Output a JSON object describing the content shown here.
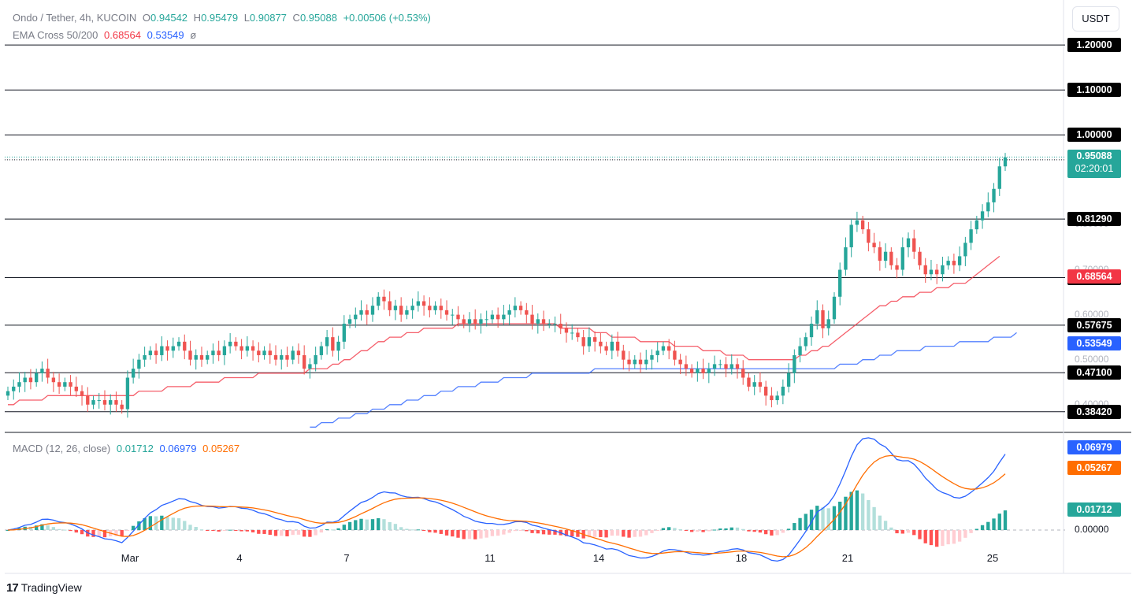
{
  "header": {
    "symbol": "Ondo / Tether, 4h, KUCOIN",
    "open_label": "O",
    "open": "0.94542",
    "high_label": "H",
    "high": "0.95479",
    "low_label": "L",
    "low": "0.90877",
    "close_label": "C",
    "close": "0.95088",
    "change": "+0.00506 (+0.53%)",
    "ema_label": "EMA Cross 50/200",
    "ema50": "0.68564",
    "ema200": "0.53549",
    "ema_extra": "ø"
  },
  "currency_button": "USDT",
  "branding": "TradingView",
  "colors": {
    "up": "#26a69a",
    "down": "#ef5350",
    "ema50": "#f23645",
    "ema200": "#2962ff",
    "macd_line": "#2962ff",
    "signal_line": "#ff6d00"
  },
  "chart_data": [
    {
      "type": "candlestick",
      "x_axis": {
        "ticks": [
          "Mar",
          "4",
          "7",
          "11",
          "14",
          "18",
          "21",
          "25"
        ]
      },
      "y_range": [
        0.34,
        1.23
      ],
      "horizontal_levels": [
        "1.20000",
        "1.10000",
        "1.00000",
        "0.94470",
        "0.81290",
        "0.68250",
        "0.57675",
        "0.47100",
        "0.38420"
      ],
      "price_labels": {
        "current": "0.95088",
        "countdown": "02:20:01",
        "ema50": "0.68564",
        "ema200": "0.53549"
      },
      "axis_ticks": [
        "0.80000",
        "0.70000",
        "0.60000",
        "0.50000",
        "0.40000"
      ],
      "closes": [
        0.43,
        0.44,
        0.45,
        0.46,
        0.45,
        0.47,
        0.48,
        0.46,
        0.45,
        0.44,
        0.45,
        0.44,
        0.43,
        0.42,
        0.4,
        0.41,
        0.41,
        0.4,
        0.41,
        0.4,
        0.39,
        0.46,
        0.48,
        0.5,
        0.51,
        0.52,
        0.51,
        0.53,
        0.52,
        0.53,
        0.54,
        0.52,
        0.5,
        0.51,
        0.5,
        0.51,
        0.52,
        0.51,
        0.53,
        0.54,
        0.53,
        0.52,
        0.53,
        0.52,
        0.51,
        0.52,
        0.51,
        0.5,
        0.51,
        0.5,
        0.52,
        0.51,
        0.48,
        0.49,
        0.51,
        0.53,
        0.55,
        0.52,
        0.54,
        0.58,
        0.59,
        0.6,
        0.61,
        0.6,
        0.62,
        0.64,
        0.63,
        0.61,
        0.62,
        0.6,
        0.61,
        0.62,
        0.63,
        0.62,
        0.61,
        0.62,
        0.61,
        0.6,
        0.6,
        0.59,
        0.58,
        0.59,
        0.58,
        0.59,
        0.59,
        0.6,
        0.59,
        0.6,
        0.61,
        0.62,
        0.61,
        0.6,
        0.58,
        0.59,
        0.58,
        0.58,
        0.58,
        0.57,
        0.56,
        0.56,
        0.55,
        0.53,
        0.55,
        0.54,
        0.53,
        0.52,
        0.54,
        0.52,
        0.5,
        0.49,
        0.5,
        0.49,
        0.5,
        0.51,
        0.52,
        0.53,
        0.52,
        0.5,
        0.49,
        0.48,
        0.47,
        0.48,
        0.47,
        0.48,
        0.49,
        0.49,
        0.48,
        0.49,
        0.48,
        0.46,
        0.44,
        0.45,
        0.44,
        0.42,
        0.41,
        0.42,
        0.44,
        0.47,
        0.51,
        0.53,
        0.55,
        0.58,
        0.61,
        0.57,
        0.59,
        0.64,
        0.7,
        0.75,
        0.8,
        0.81,
        0.79,
        0.76,
        0.75,
        0.72,
        0.74,
        0.71,
        0.7,
        0.75,
        0.77,
        0.74,
        0.71,
        0.69,
        0.7,
        0.69,
        0.71,
        0.72,
        0.71,
        0.73,
        0.76,
        0.79,
        0.81,
        0.83,
        0.85,
        0.88,
        0.93,
        0.95
      ],
      "ema50": [
        0.4,
        0.4,
        0.41,
        0.41,
        0.41,
        0.41,
        0.41,
        0.42,
        0.42,
        0.42,
        0.42,
        0.42,
        0.42,
        0.42,
        0.42,
        0.42,
        0.42,
        0.42,
        0.42,
        0.42,
        0.42,
        0.42,
        0.42,
        0.43,
        0.43,
        0.43,
        0.43,
        0.43,
        0.44,
        0.44,
        0.44,
        0.44,
        0.44,
        0.45,
        0.45,
        0.45,
        0.45,
        0.45,
        0.46,
        0.46,
        0.46,
        0.46,
        0.46,
        0.46,
        0.47,
        0.47,
        0.47,
        0.47,
        0.47,
        0.47,
        0.47,
        0.47,
        0.47,
        0.48,
        0.48,
        0.48,
        0.48,
        0.49,
        0.49,
        0.5,
        0.5,
        0.51,
        0.52,
        0.52,
        0.53,
        0.54,
        0.54,
        0.55,
        0.55,
        0.55,
        0.56,
        0.56,
        0.56,
        0.57,
        0.57,
        0.57,
        0.57,
        0.57,
        0.57,
        0.58,
        0.58,
        0.58,
        0.58,
        0.58,
        0.58,
        0.58,
        0.58,
        0.58,
        0.58,
        0.58,
        0.58,
        0.58,
        0.58,
        0.58,
        0.58,
        0.58,
        0.58,
        0.57,
        0.57,
        0.57,
        0.57,
        0.57,
        0.57,
        0.56,
        0.56,
        0.56,
        0.55,
        0.55,
        0.55,
        0.55,
        0.55,
        0.54,
        0.54,
        0.54,
        0.54,
        0.54,
        0.54,
        0.53,
        0.53,
        0.53,
        0.53,
        0.53,
        0.52,
        0.52,
        0.52,
        0.52,
        0.51,
        0.51,
        0.51,
        0.51,
        0.5,
        0.5,
        0.5,
        0.5,
        0.5,
        0.5,
        0.5,
        0.5,
        0.5,
        0.51,
        0.51,
        0.52,
        0.52,
        0.53,
        0.53,
        0.54,
        0.55,
        0.56,
        0.57,
        0.58,
        0.59,
        0.6,
        0.61,
        0.62,
        0.62,
        0.63,
        0.63,
        0.64,
        0.64,
        0.64,
        0.65,
        0.65,
        0.65,
        0.66,
        0.66,
        0.66,
        0.67,
        0.67,
        0.67,
        0.68,
        0.69,
        0.7,
        0.71,
        0.72,
        0.73
      ],
      "ema200": [
        null,
        null,
        null,
        null,
        null,
        null,
        null,
        null,
        null,
        null,
        null,
        null,
        null,
        null,
        null,
        null,
        null,
        null,
        null,
        null,
        null,
        null,
        null,
        null,
        null,
        null,
        null,
        null,
        null,
        null,
        null,
        null,
        null,
        null,
        null,
        null,
        null,
        null,
        null,
        null,
        null,
        null,
        null,
        null,
        null,
        null,
        null,
        null,
        null,
        null,
        null,
        null,
        null,
        0.35,
        0.35,
        0.36,
        0.36,
        0.36,
        0.37,
        0.37,
        0.37,
        0.38,
        0.38,
        0.38,
        0.39,
        0.39,
        0.39,
        0.4,
        0.4,
        0.4,
        0.41,
        0.41,
        0.41,
        0.42,
        0.42,
        0.42,
        0.43,
        0.43,
        0.43,
        0.44,
        0.44,
        0.44,
        0.44,
        0.45,
        0.45,
        0.45,
        0.45,
        0.46,
        0.46,
        0.46,
        0.46,
        0.46,
        0.47,
        0.47,
        0.47,
        0.47,
        0.47,
        0.47,
        0.47,
        0.47,
        0.47,
        0.47,
        0.47,
        0.48,
        0.48,
        0.48,
        0.48,
        0.48,
        0.48,
        0.48,
        0.48,
        0.48,
        0.48,
        0.48,
        0.48,
        0.48,
        0.48,
        0.48,
        0.48,
        0.48,
        0.48,
        0.48,
        0.48,
        0.48,
        0.48,
        0.48,
        0.48,
        0.48,
        0.48,
        0.48,
        0.48,
        0.48,
        0.48,
        0.48,
        0.48,
        0.48,
        0.48,
        0.48,
        0.48,
        0.48,
        0.48,
        0.48,
        0.48,
        0.48,
        0.48,
        0.48,
        0.49,
        0.49,
        0.49,
        0.49,
        0.5,
        0.5,
        0.5,
        0.51,
        0.51,
        0.51,
        0.52,
        0.52,
        0.52,
        0.52,
        0.52,
        0.53,
        0.53,
        0.53,
        0.53,
        0.53,
        0.53,
        0.54,
        0.54,
        0.54,
        0.54,
        0.54,
        0.54,
        0.55,
        0.55,
        0.55,
        0.55,
        0.56
      ]
    },
    {
      "type": "macd",
      "title": "MACD (12, 26, close)",
      "histogram_value": "0.01712",
      "macd_value": "0.06979",
      "signal_value": "0.05267",
      "zero_label": "0.00000",
      "y_range": [
        -0.018,
        0.078
      ]
    }
  ]
}
